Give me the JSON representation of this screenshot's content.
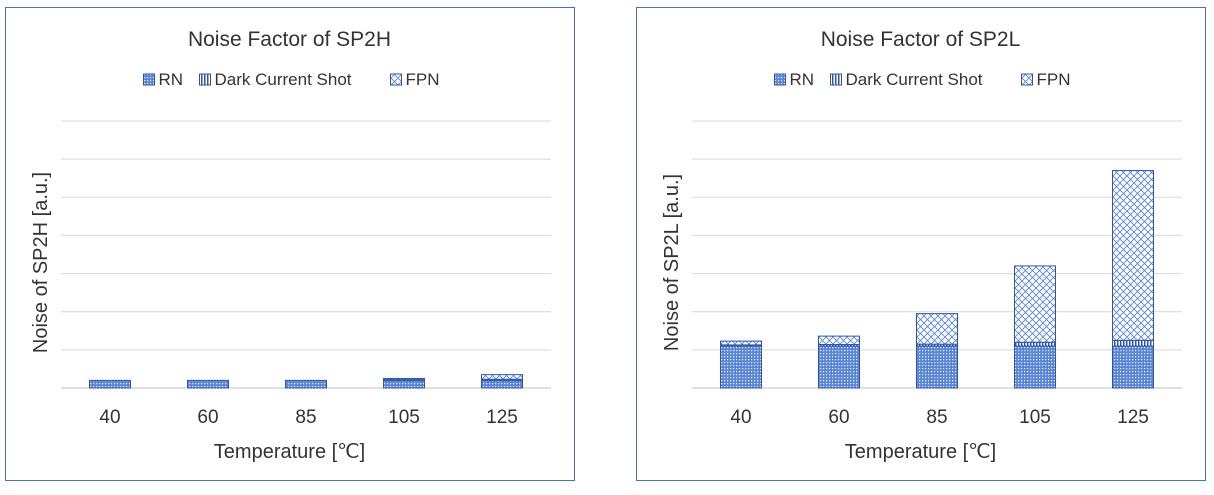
{
  "patterns": {
    "fill": "#5b86d6",
    "stroke": "#2f55a8"
  },
  "chart_data": [
    {
      "type": "bar",
      "stacked": true,
      "title": "Noise Factor of SP2H",
      "xlabel": "Temperature [℃]",
      "ylabel": "Noise of SP2H [a.u.]",
      "categories": [
        "40",
        "60",
        "85",
        "105",
        "125"
      ],
      "ylim": [
        0,
        7
      ],
      "grid": true,
      "legend": "top",
      "series": [
        {
          "name": "RN",
          "pattern": "dots",
          "values": [
            0.2,
            0.2,
            0.2,
            0.2,
            0.2
          ]
        },
        {
          "name": "Dark Current Shot",
          "pattern": "vlines",
          "values": [
            0.0,
            0.0,
            0.0,
            0.02,
            0.03
          ]
        },
        {
          "name": "FPN",
          "pattern": "cross",
          "values": [
            0.0,
            0.0,
            0.0,
            0.03,
            0.12
          ]
        }
      ]
    },
    {
      "type": "bar",
      "stacked": true,
      "title": "Noise Factor of SP2L",
      "xlabel": "Temperature [℃]",
      "ylabel": "Noise of SP2L [a.u.]",
      "categories": [
        "40",
        "60",
        "85",
        "105",
        "125"
      ],
      "ylim": [
        0,
        7
      ],
      "grid": true,
      "legend": "top",
      "series": [
        {
          "name": "RN",
          "pattern": "dots",
          "values": [
            1.1,
            1.1,
            1.1,
            1.1,
            1.1
          ]
        },
        {
          "name": "Dark Current Shot",
          "pattern": "vlines",
          "values": [
            0.03,
            0.04,
            0.05,
            0.1,
            0.15
          ]
        },
        {
          "name": "FPN",
          "pattern": "cross",
          "values": [
            0.1,
            0.22,
            0.8,
            2.0,
            4.45
          ]
        }
      ]
    }
  ]
}
